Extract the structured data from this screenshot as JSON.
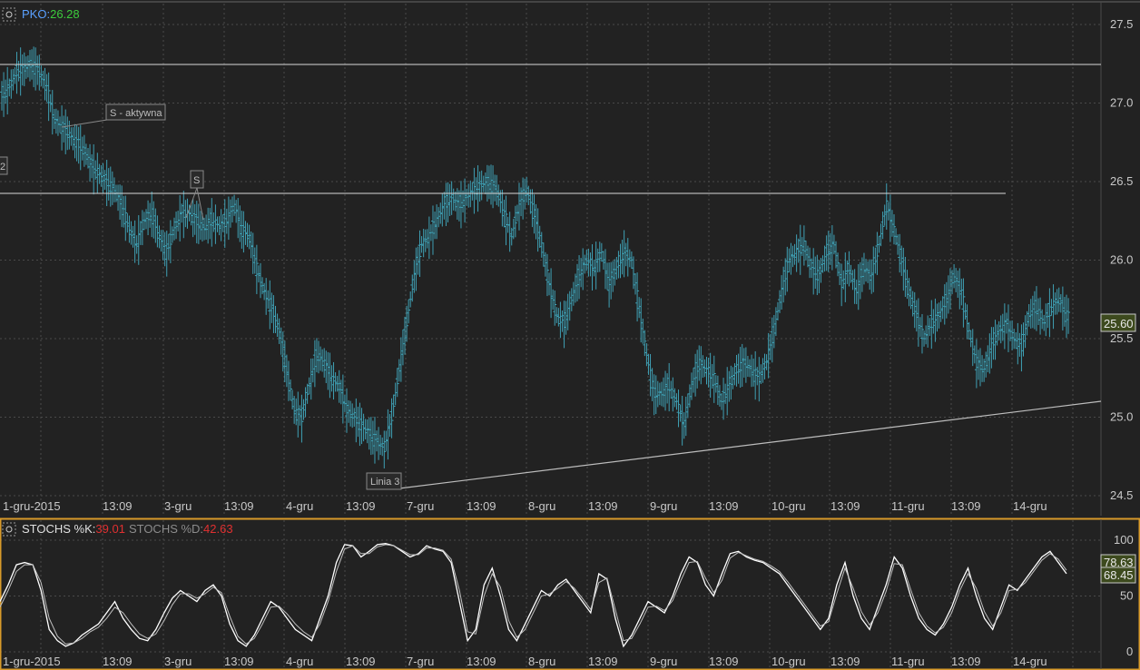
{
  "top_panel": {
    "symbol": "PKO",
    "symbol_sep": ":",
    "last_value": "26.28",
    "price_tag": "25.60",
    "annotations": {
      "s_active": "S - aktywna",
      "s_marker": "S",
      "left_marker": "2",
      "line_3": "Linia 3"
    }
  },
  "bottom_panel": {
    "k_label": "STOCHS %K:",
    "k_value": "39.01",
    "d_label": "STOCHS %D:",
    "d_value": "42.63",
    "tag_k": "78.63",
    "tag_d": "68.45"
  },
  "time_labels": [
    "1-gru-2015",
    "13:09",
    "3-gru",
    "13:09",
    "4-gru",
    "13:09",
    "7-gru",
    "13:09",
    "8-gru",
    "13:09",
    "9-gru",
    "13:09",
    "10-gru",
    "13:09",
    "11-gru",
    "13:09",
    "14-gru"
  ],
  "colors": {
    "background": "#222222",
    "bars": "#3fa0b4",
    "grid": "#4a4a4a",
    "line": "#d8d8d8",
    "symbol": "#5aa0ff",
    "up_value": "#3ccc3c",
    "stoch_value": "#e03030",
    "panel_border": "#d89a2a",
    "tag_bg": "#3d4a1e"
  },
  "chart_data": [
    {
      "type": "ohlc",
      "series": [
        {
          "name": "PKO",
          "y": [
            27.05,
            27.1,
            27.2,
            27.22,
            27.25,
            27.2,
            27.1,
            26.9,
            26.85,
            26.8,
            26.75,
            26.7,
            26.6,
            26.55,
            26.5,
            26.45,
            26.35,
            26.2,
            26.1,
            26.25,
            26.3,
            26.15,
            26.05,
            26.2,
            26.3,
            26.3,
            26.25,
            26.2,
            26.25,
            26.22,
            26.25,
            26.35,
            26.2,
            26.15,
            25.95,
            25.8,
            25.7,
            25.55,
            25.3,
            25.05,
            25.0,
            25.2,
            25.4,
            25.35,
            25.25,
            25.2,
            25.05,
            25.0,
            24.95,
            24.9,
            24.85,
            24.8,
            25.0,
            25.3,
            25.6,
            25.9,
            26.1,
            26.15,
            26.25,
            26.35,
            26.4,
            26.35,
            26.4,
            26.45,
            26.48,
            26.5,
            26.45,
            26.3,
            26.15,
            26.35,
            26.45,
            26.3,
            26.1,
            25.85,
            25.65,
            25.6,
            25.75,
            25.9,
            26.0,
            25.95,
            26.05,
            25.85,
            25.95,
            26.05,
            26.0,
            25.7,
            25.4,
            25.15,
            25.15,
            25.2,
            25.1,
            24.95,
            25.2,
            25.35,
            25.3,
            25.25,
            25.1,
            25.2,
            25.3,
            25.35,
            25.3,
            25.25,
            25.35,
            25.55,
            25.8,
            26.0,
            26.05,
            26.1,
            25.95,
            25.9,
            26.05,
            26.1,
            25.85,
            25.95,
            25.8,
            25.95,
            25.9,
            26.1,
            26.35,
            26.2,
            26.0,
            25.8,
            25.65,
            25.5,
            25.6,
            25.65,
            25.75,
            25.9,
            25.8,
            25.55,
            25.35,
            25.3,
            25.45,
            25.55,
            25.6,
            25.5,
            25.45,
            25.65,
            25.7,
            25.6,
            25.7,
            25.75,
            25.65
          ]
        }
      ],
      "ylim": [
        24.5,
        27.5
      ],
      "y_ticks": [
        27.5,
        27.0,
        26.5,
        26.0,
        25.5,
        25.0,
        24.5
      ],
      "lines": [
        {
          "name": "resistance",
          "y": 27.22
        },
        {
          "name": "S - aktywna",
          "y": 26.42
        },
        {
          "name": "Linia 3",
          "from": 24.55,
          "to": 25.1
        }
      ],
      "grid": true
    },
    {
      "type": "line",
      "series": [
        {
          "name": "STOCHS %K",
          "values": [
            45,
            60,
            78,
            80,
            78,
            55,
            20,
            10,
            5,
            8,
            15,
            20,
            25,
            35,
            45,
            30,
            20,
            12,
            10,
            20,
            35,
            48,
            55,
            50,
            45,
            55,
            60,
            50,
            25,
            10,
            5,
            15,
            30,
            45,
            40,
            30,
            20,
            15,
            10,
            30,
            50,
            80,
            96,
            95,
            85,
            90,
            96,
            97,
            95,
            90,
            85,
            88,
            95,
            92,
            90,
            80,
            45,
            10,
            20,
            60,
            75,
            50,
            20,
            10,
            25,
            40,
            55,
            50,
            60,
            65,
            55,
            45,
            35,
            70,
            65,
            30,
            5,
            15,
            30,
            45,
            40,
            35,
            50,
            70,
            85,
            80,
            60,
            50,
            70,
            88,
            90,
            85,
            82,
            80,
            75,
            70,
            60,
            50,
            40,
            30,
            20,
            30,
            60,
            80,
            50,
            30,
            20,
            40,
            60,
            85,
            75,
            50,
            30,
            20,
            15,
            25,
            40,
            60,
            75,
            50,
            30,
            20,
            40,
            60,
            55,
            65,
            75,
            85,
            90,
            80,
            70
          ]
        },
        {
          "name": "STOCHS %D",
          "values": [
            40,
            55,
            72,
            78,
            78,
            62,
            30,
            14,
            7,
            8,
            12,
            18,
            22,
            30,
            40,
            35,
            25,
            16,
            12,
            16,
            28,
            42,
            52,
            52,
            48,
            52,
            58,
            53,
            32,
            14,
            7,
            12,
            25,
            40,
            41,
            34,
            25,
            18,
            13,
            25,
            45,
            72,
            92,
            95,
            88,
            88,
            94,
            96,
            95,
            91,
            87,
            87,
            93,
            93,
            91,
            83,
            55,
            18,
            16,
            50,
            70,
            58,
            28,
            13,
            20,
            35,
            50,
            52,
            57,
            63,
            57,
            48,
            38,
            62,
            66,
            38,
            10,
            12,
            25,
            40,
            41,
            37,
            46,
            64,
            80,
            81,
            66,
            53,
            64,
            84,
            89,
            86,
            83,
            81,
            77,
            72,
            63,
            53,
            43,
            33,
            23,
            27,
            52,
            75,
            57,
            36,
            24,
            35,
            54,
            79,
            78,
            56,
            35,
            23,
            17,
            22,
            35,
            55,
            70,
            57,
            36,
            23,
            35,
            55,
            56,
            62,
            72,
            82,
            88,
            83,
            73
          ]
        }
      ],
      "ylim": [
        0,
        100
      ],
      "y_ticks": [
        100,
        50,
        0
      ],
      "grid": true
    }
  ]
}
